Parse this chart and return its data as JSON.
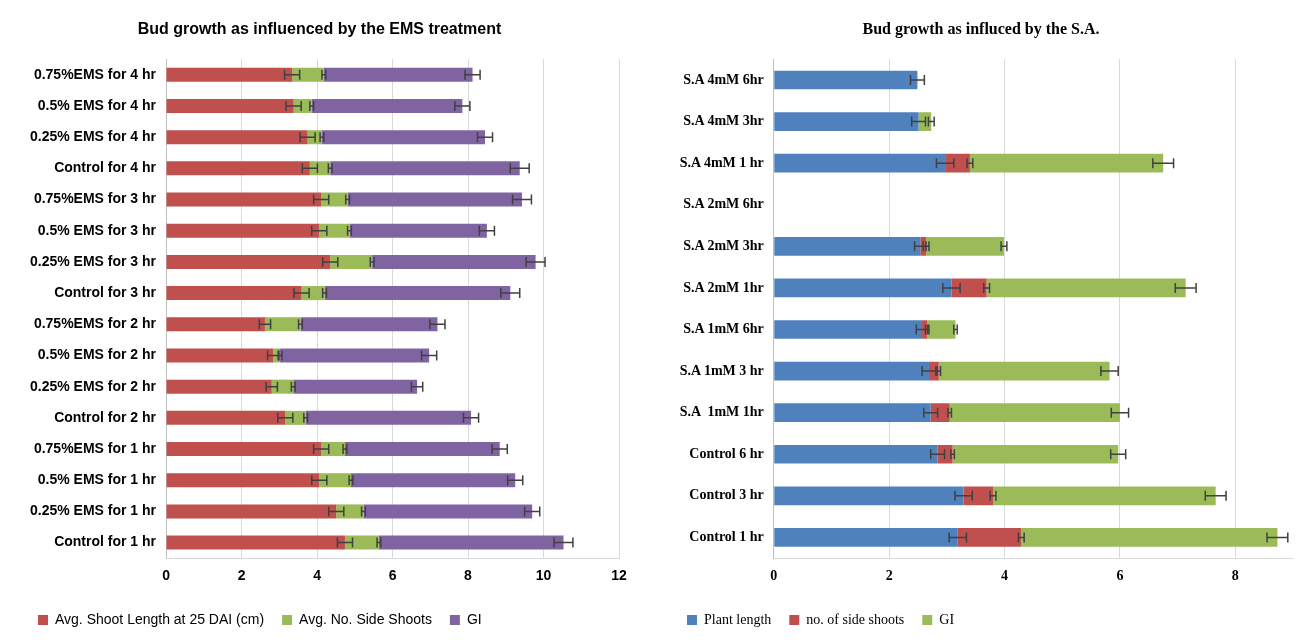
{
  "chart_data": [
    {
      "type": "bar",
      "orientation": "horizontal",
      "stacked": true,
      "title": "Bud growth as influenced by the EMS treatment",
      "grid": "x",
      "legend": "bottom",
      "xlim": [
        0,
        12
      ],
      "xticks": [
        0,
        2,
        4,
        6,
        8,
        10,
        12
      ],
      "categories": [
        "0.75%EMS for 4 hr",
        "0.5% EMS for 4 hr",
        "0.25% EMS for 4 hr",
        "Control for 4 hr",
        "0.75%EMS for 3 hr",
        "0.5% EMS for 3 hr",
        "0.25% EMS for 3 hr",
        "Control for 3 hr",
        "0.75%EMS for 2 hr",
        "0.5% EMS for 2 hr",
        "0.25% EMS for 2 hr",
        "Control for 2 hr",
        "0.75%EMS for 1 hr",
        "0.5% EMS for 1 hr",
        "0.25% EMS for 1 hr",
        "Control for 1 hr"
      ],
      "series": [
        {
          "name": "Avg. Shoot Length at 25 DAI (cm)",
          "color": "#c0504d",
          "values": [
            3.34,
            3.38,
            3.75,
            3.81,
            4.11,
            4.06,
            4.35,
            3.59,
            2.62,
            2.84,
            2.8,
            3.16,
            4.11,
            4.06,
            4.51,
            4.74
          ],
          "errors": [
            0.2,
            0.2,
            0.2,
            0.2,
            0.2,
            0.2,
            0.2,
            0.2,
            0.15,
            0.15,
            0.15,
            0.2,
            0.2,
            0.2,
            0.2,
            0.2
          ]
        },
        {
          "name": "Avg. No. Side Shoots",
          "color": "#9bbb59",
          "values": [
            0.84,
            0.48,
            0.38,
            0.54,
            0.7,
            0.8,
            1.11,
            0.61,
            0.94,
            0.18,
            0.57,
            0.54,
            0.63,
            0.84,
            0.72,
            0.9
          ],
          "errors": [
            0.05,
            0.05,
            0.05,
            0.05,
            0.05,
            0.05,
            0.05,
            0.05,
            0.05,
            0.05,
            0.05,
            0.05,
            0.05,
            0.05,
            0.05,
            0.05
          ]
        },
        {
          "name": "GI",
          "color": "#8064a2",
          "values": [
            3.94,
            3.99,
            4.32,
            5.02,
            4.62,
            3.64,
            4.33,
            4.92,
            3.63,
            3.95,
            3.28,
            4.38,
            4.1,
            4.35,
            4.47,
            4.89
          ],
          "errors": [
            0.2,
            0.2,
            0.2,
            0.25,
            0.25,
            0.2,
            0.25,
            0.25,
            0.2,
            0.2,
            0.15,
            0.2,
            0.2,
            0.2,
            0.2,
            0.25
          ]
        }
      ]
    },
    {
      "type": "bar",
      "orientation": "horizontal",
      "stacked": true,
      "title": "Bud growth as influced by the S.A.",
      "grid": "x",
      "legend": "bottom",
      "xlim": [
        0,
        9
      ],
      "xticks": [
        0,
        2,
        4,
        6,
        8
      ],
      "categories": [
        "S.A 4mM 6hr",
        "S.A 4mM 3hr",
        "S.A 4mM 1 hr",
        "S.A 2mM 6hr",
        "S.A 2mM 3hr",
        "S.A 2mM 1hr",
        "S.A 1mM 6hr",
        "S.A 1mM 3 hr",
        "S.A  1mM 1hr",
        "Control 6 hr",
        "Control 3 hr",
        "Control 1 hr"
      ],
      "series": [
        {
          "name": "Plant length",
          "color": "#4f81bd",
          "values": [
            2.49,
            2.51,
            2.97,
            null,
            2.54,
            3.08,
            2.57,
            2.69,
            2.72,
            2.84,
            3.29,
            3.19
          ],
          "errors": [
            0.12,
            0.12,
            0.15,
            null,
            0.1,
            0.15,
            0.1,
            0.12,
            0.12,
            0.12,
            0.15,
            0.15
          ]
        },
        {
          "name": "no. of side shoots",
          "color": "#c0504d",
          "values": [
            null,
            null,
            0.43,
            null,
            0.1,
            0.61,
            0.09,
            0.17,
            0.33,
            0.26,
            0.51,
            1.1
          ],
          "errors": [
            null,
            null,
            0.05,
            null,
            0.05,
            0.05,
            0.03,
            0.03,
            0.03,
            0.03,
            0.05,
            0.05
          ]
        },
        {
          "name": "GI",
          "color": "#9bbb59",
          "values": [
            null,
            0.22,
            3.35,
            null,
            1.35,
            3.45,
            0.49,
            2.96,
            2.95,
            2.87,
            3.86,
            4.44
          ],
          "errors": [
            null,
            0.05,
            0.18,
            null,
            0.05,
            0.18,
            0.03,
            0.15,
            0.15,
            0.13,
            0.18,
            0.18
          ]
        }
      ]
    }
  ]
}
